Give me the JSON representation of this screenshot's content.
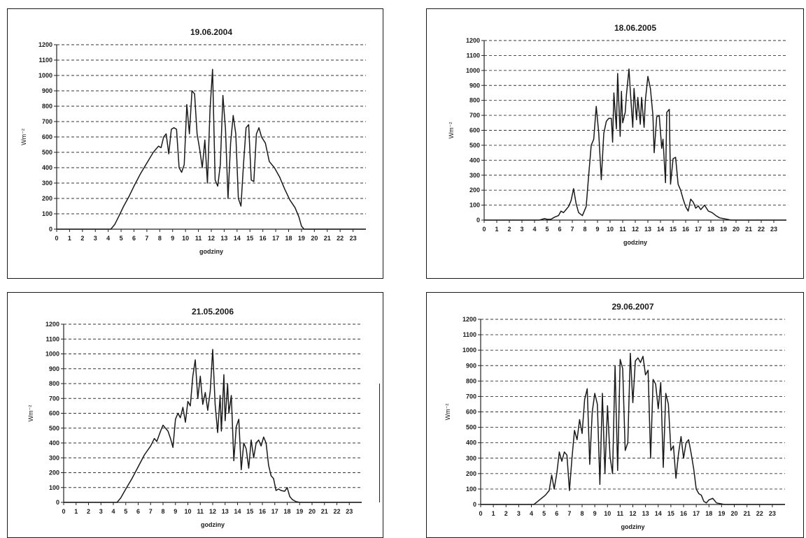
{
  "chart_data": [
    {
      "type": "line",
      "title": "19.06.2004",
      "xlabel": "godziny",
      "ylabel": "Wm⁻²",
      "xlim": [
        0,
        24
      ],
      "ylim": [
        0,
        1200
      ],
      "xticks": [
        "0",
        "1",
        "2",
        "3",
        "4",
        "5",
        "6",
        "7",
        "8",
        "9",
        "10",
        "11",
        "12",
        "13",
        "14",
        "15",
        "16",
        "17",
        "18",
        "19",
        "20",
        "21",
        "22",
        "23"
      ],
      "yticks": [
        "0",
        "100",
        "200",
        "300",
        "400",
        "500",
        "600",
        "700",
        "800",
        "900",
        "1000",
        "1100",
        "1200"
      ],
      "grid": "dashed horizontal",
      "x": [
        0,
        4.2,
        4.5,
        4.8,
        5.2,
        5.6,
        6.0,
        6.5,
        7.0,
        7.5,
        7.9,
        8.1,
        8.3,
        8.5,
        8.7,
        8.9,
        9.1,
        9.3,
        9.5,
        9.7,
        9.9,
        10.1,
        10.3,
        10.5,
        10.7,
        10.9,
        11.1,
        11.3,
        11.5,
        11.7,
        11.9,
        12.1,
        12.3,
        12.5,
        12.7,
        12.9,
        13.1,
        13.3,
        13.5,
        13.7,
        13.9,
        14.1,
        14.3,
        14.5,
        14.7,
        14.9,
        15.1,
        15.3,
        15.5,
        15.7,
        15.9,
        16.2,
        16.5,
        16.9,
        17.3,
        17.7,
        18.1,
        18.5,
        18.8,
        19.0,
        19.2,
        24
      ],
      "y": [
        0,
        0,
        30,
        80,
        150,
        210,
        280,
        360,
        430,
        500,
        540,
        530,
        600,
        620,
        490,
        650,
        660,
        650,
        400,
        370,
        420,
        810,
        620,
        900,
        880,
        620,
        520,
        400,
        580,
        300,
        780,
        1040,
        320,
        280,
        420,
        870,
        650,
        200,
        560,
        740,
        620,
        200,
        150,
        420,
        660,
        680,
        320,
        310,
        620,
        660,
        600,
        560,
        440,
        400,
        340,
        260,
        190,
        140,
        80,
        20,
        0,
        0
      ]
    },
    {
      "type": "line",
      "title": "18.06.2005",
      "xlabel": "godziny",
      "ylabel": "Wm⁻²",
      "xlim": [
        0,
        24
      ],
      "ylim": [
        0,
        1200
      ],
      "xticks": [
        "0",
        "1",
        "2",
        "3",
        "4",
        "5",
        "6",
        "7",
        "8",
        "9",
        "10",
        "11",
        "12",
        "13",
        "14",
        "15",
        "16",
        "17",
        "18",
        "19",
        "20",
        "21",
        "22",
        "23"
      ],
      "yticks": [
        "0",
        "100",
        "200",
        "300",
        "400",
        "500",
        "600",
        "700",
        "800",
        "900",
        "1000",
        "1100",
        "1200"
      ],
      "grid": "dashed horizontal",
      "x": [
        0,
        4.4,
        4.6,
        4.8,
        5.0,
        5.3,
        5.6,
        5.9,
        6.1,
        6.3,
        6.5,
        6.7,
        6.9,
        7.1,
        7.3,
        7.5,
        7.8,
        8.1,
        8.3,
        8.5,
        8.7,
        8.9,
        9.1,
        9.3,
        9.5,
        9.7,
        9.9,
        10.1,
        10.2,
        10.3,
        10.5,
        10.6,
        10.8,
        10.9,
        11.0,
        11.2,
        11.3,
        11.5,
        11.6,
        11.8,
        11.9,
        12.1,
        12.2,
        12.4,
        12.5,
        12.7,
        12.8,
        13.0,
        13.2,
        13.4,
        13.5,
        13.7,
        13.9,
        14.1,
        14.2,
        14.4,
        14.5,
        14.7,
        14.8,
        15.0,
        15.2,
        15.4,
        15.6,
        15.8,
        16.0,
        16.2,
        16.4,
        16.6,
        16.8,
        17.0,
        17.2,
        17.5,
        17.8,
        18.1,
        18.4,
        18.7,
        19.0,
        19.3,
        19.6,
        24
      ],
      "y": [
        0,
        0,
        5,
        10,
        5,
        5,
        20,
        30,
        60,
        50,
        70,
        90,
        130,
        210,
        110,
        50,
        30,
        90,
        300,
        500,
        540,
        760,
        580,
        270,
        580,
        660,
        680,
        680,
        520,
        850,
        610,
        980,
        560,
        860,
        650,
        720,
        840,
        1010,
        870,
        620,
        880,
        670,
        820,
        640,
        820,
        620,
        800,
        960,
        880,
        700,
        450,
        690,
        700,
        480,
        540,
        250,
        720,
        740,
        240,
        410,
        420,
        240,
        200,
        140,
        90,
        60,
        140,
        120,
        80,
        95,
        70,
        100,
        60,
        50,
        30,
        15,
        10,
        5,
        0,
        0
      ]
    },
    {
      "type": "line",
      "title": "21.05.2006",
      "xlabel": "godziny",
      "ylabel": "Wm⁻²",
      "xlim": [
        0,
        24
      ],
      "ylim": [
        0,
        1200
      ],
      "xticks": [
        "0",
        "1",
        "2",
        "3",
        "4",
        "5",
        "6",
        "7",
        "8",
        "9",
        "10",
        "11",
        "12",
        "13",
        "14",
        "15",
        "16",
        "17",
        "18",
        "19",
        "20",
        "21",
        "22",
        "23"
      ],
      "yticks": [
        "0",
        "100",
        "200",
        "300",
        "400",
        "500",
        "600",
        "700",
        "800",
        "900",
        "1000",
        "1100",
        "1200"
      ],
      "grid": "dashed horizontal",
      "x": [
        0,
        4.3,
        4.6,
        5.0,
        5.5,
        6.0,
        6.5,
        7.0,
        7.3,
        7.5,
        7.8,
        8.0,
        8.2,
        8.4,
        8.6,
        8.8,
        9.0,
        9.2,
        9.4,
        9.6,
        9.8,
        10.0,
        10.2,
        10.4,
        10.6,
        10.8,
        11.0,
        11.2,
        11.4,
        11.6,
        11.8,
        12.0,
        12.2,
        12.4,
        12.6,
        12.7,
        12.9,
        13.0,
        13.2,
        13.3,
        13.5,
        13.7,
        13.9,
        14.1,
        14.3,
        14.5,
        14.7,
        14.9,
        15.1,
        15.3,
        15.5,
        15.7,
        15.9,
        16.1,
        16.3,
        16.5,
        16.7,
        16.9,
        17.1,
        17.3,
        17.5,
        17.8,
        18.0,
        18.2,
        18.4,
        18.7,
        19.0,
        19.3,
        19.6,
        24
      ],
      "y": [
        0,
        0,
        30,
        90,
        160,
        240,
        320,
        380,
        430,
        410,
        480,
        520,
        500,
        480,
        430,
        370,
        560,
        600,
        570,
        640,
        540,
        680,
        650,
        850,
        960,
        700,
        850,
        660,
        740,
        620,
        750,
        1030,
        660,
        470,
        720,
        480,
        860,
        550,
        800,
        600,
        720,
        280,
        510,
        560,
        220,
        400,
        360,
        230,
        420,
        300,
        400,
        420,
        380,
        440,
        400,
        250,
        180,
        160,
        80,
        90,
        80,
        75,
        100,
        40,
        20,
        5,
        0,
        0,
        0,
        0
      ]
    },
    {
      "type": "line",
      "title": "29.06.2007",
      "xlabel": "godziny",
      "ylabel": "Wm⁻²",
      "xlim": [
        0,
        24
      ],
      "ylim": [
        0,
        1200
      ],
      "xticks": [
        "0",
        "1",
        "2",
        "3",
        "4",
        "5",
        "6",
        "7",
        "8",
        "9",
        "10",
        "11",
        "12",
        "13",
        "14",
        "15",
        "16",
        "17",
        "18",
        "19",
        "20",
        "21",
        "22",
        "23"
      ],
      "yticks": [
        "0",
        "100",
        "200",
        "300",
        "400",
        "500",
        "600",
        "700",
        "800",
        "900",
        "1000",
        "1100",
        "1200"
      ],
      "grid": "dashed horizontal",
      "x": [
        0,
        4.2,
        4.5,
        4.8,
        5.1,
        5.4,
        5.6,
        5.8,
        6.0,
        6.2,
        6.4,
        6.6,
        6.8,
        7.0,
        7.2,
        7.4,
        7.6,
        7.8,
        8.0,
        8.2,
        8.4,
        8.6,
        8.8,
        9.0,
        9.2,
        9.4,
        9.6,
        9.8,
        10.0,
        10.2,
        10.4,
        10.6,
        10.8,
        11.0,
        11.2,
        11.4,
        11.6,
        11.8,
        12.0,
        12.2,
        12.4,
        12.6,
        12.8,
        13.0,
        13.2,
        13.4,
        13.6,
        13.8,
        14.0,
        14.2,
        14.4,
        14.6,
        14.8,
        15.0,
        15.2,
        15.4,
        15.6,
        15.8,
        16.0,
        16.2,
        16.4,
        16.6,
        16.8,
        17.0,
        17.2,
        17.4,
        17.6,
        17.8,
        18.0,
        18.3,
        18.6,
        18.9,
        19.2,
        19.5,
        19.8,
        24
      ],
      "y": [
        0,
        0,
        20,
        40,
        60,
        90,
        190,
        100,
        200,
        340,
        280,
        340,
        320,
        90,
        300,
        480,
        420,
        550,
        460,
        680,
        750,
        260,
        600,
        720,
        650,
        130,
        720,
        200,
        640,
        310,
        200,
        900,
        220,
        940,
        880,
        350,
        400,
        980,
        660,
        930,
        950,
        920,
        960,
        840,
        870,
        300,
        810,
        780,
        620,
        790,
        240,
        720,
        650,
        350,
        380,
        170,
        330,
        440,
        300,
        400,
        420,
        330,
        230,
        100,
        70,
        60,
        20,
        10,
        30,
        40,
        10,
        5,
        0,
        0,
        0,
        0
      ]
    }
  ]
}
